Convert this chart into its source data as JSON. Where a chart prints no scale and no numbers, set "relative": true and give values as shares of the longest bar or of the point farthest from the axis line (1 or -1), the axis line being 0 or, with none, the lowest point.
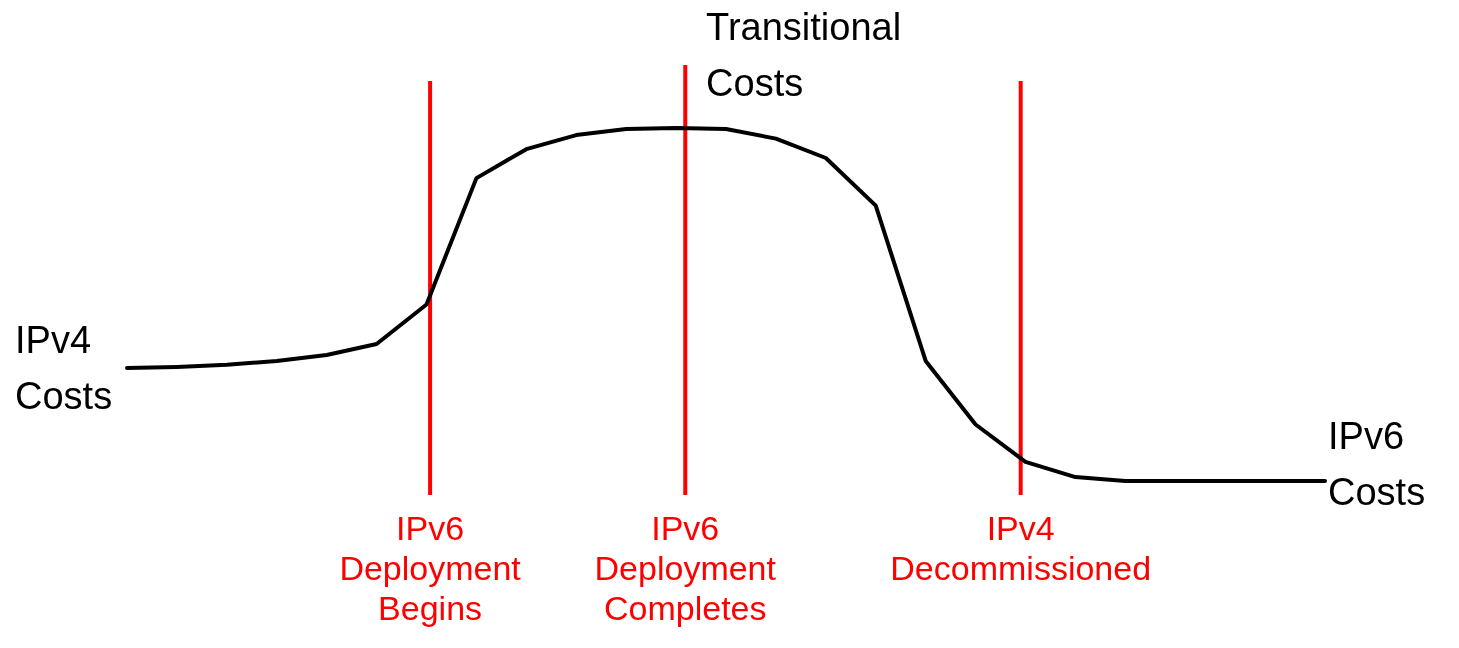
{
  "chart_data": {
    "type": "line",
    "relative": true,
    "categories": [
      null,
      null,
      null,
      null,
      null,
      null,
      null,
      null,
      null,
      null,
      null,
      null,
      null,
      null,
      null,
      null,
      null,
      null,
      null,
      null,
      null,
      null,
      null,
      null,
      null
    ],
    "series": [
      {
        "color": "#000000",
        "values": [
          0.32,
          0.323,
          0.329,
          0.34,
          0.357,
          0.388,
          0.5,
          0.858,
          0.94,
          0.98,
          0.997,
          1,
          0.997,
          0.97,
          0.915,
          0.78,
          0.34,
          0.16,
          0.054,
          0.011,
          0,
          0,
          0,
          0,
          0
        ]
      }
    ],
    "annotations": [
      "IPv4 Costs",
      "Transitional Costs",
      "IPv6 Costs",
      "IPv6 Deployment Begins",
      "IPv6 Deployment Completes",
      "IPv4 Decommissioned"
    ],
    "marker": "none",
    "line_style": "solid"
  }
}
